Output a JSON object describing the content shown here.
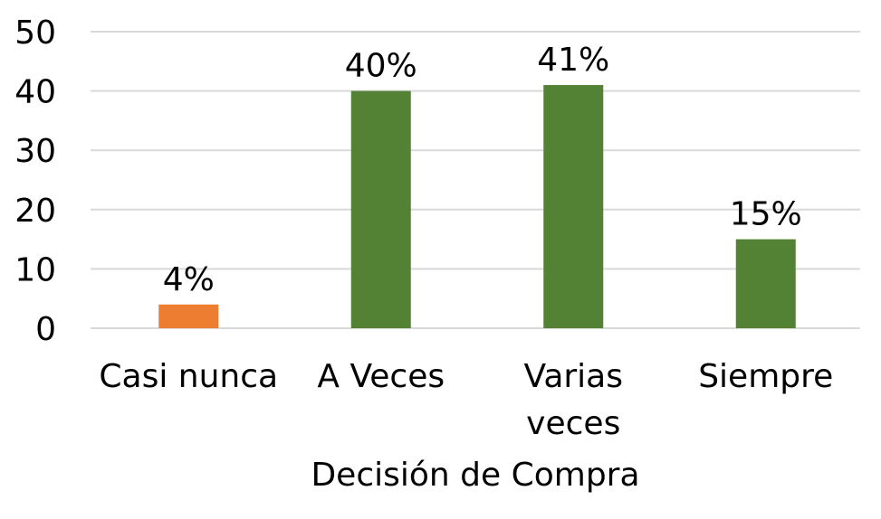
{
  "chart_data": {
    "type": "bar",
    "categories": [
      "Casi nunca",
      "A Veces",
      "Varias veces",
      "Siempre"
    ],
    "category_lines": [
      [
        "Casi nunca"
      ],
      [
        "A Veces"
      ],
      [
        "Varias",
        "veces"
      ],
      [
        "Siempre"
      ]
    ],
    "values": [
      4,
      40,
      41,
      15
    ],
    "data_labels": [
      "4%",
      "40%",
      "41%",
      "15%"
    ],
    "bar_colors": [
      "#ed7d31",
      "#548235",
      "#548235",
      "#548235"
    ],
    "title": "",
    "xlabel": "Decisión de Compra",
    "ylabel": "",
    "ylim": [
      0,
      50
    ],
    "yticks": [
      0,
      10,
      20,
      30,
      40,
      50
    ],
    "grid": true,
    "legend": false
  }
}
